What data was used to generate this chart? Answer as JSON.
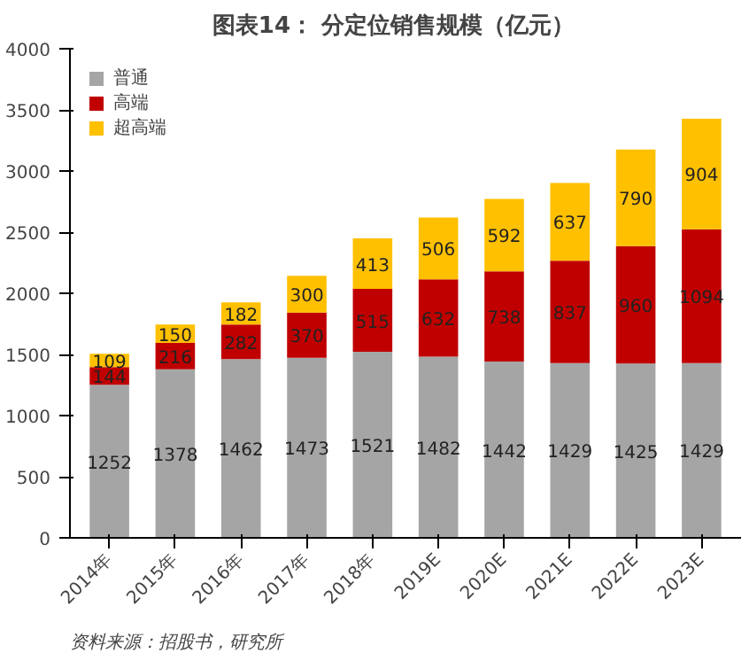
{
  "chart_data": {
    "type": "bar",
    "title": "图表14：    分定位销售规模（亿元）",
    "categories": [
      "2014年",
      "2015年",
      "2016年",
      "2017年",
      "2018年",
      "2019E",
      "2020E",
      "2021E",
      "2022E",
      "2023E"
    ],
    "series": [
      {
        "name": "普通",
        "color": "#a5a5a5",
        "values": [
          1252,
          1378,
          1462,
          1473,
          1521,
          1482,
          1442,
          1429,
          1425,
          1429
        ]
      },
      {
        "name": "高端",
        "color": "#c00000",
        "values": [
          144,
          216,
          282,
          370,
          515,
          632,
          738,
          837,
          960,
          1094
        ]
      },
      {
        "name": "超高端",
        "color": "#ffc000",
        "values": [
          109,
          150,
          182,
          300,
          413,
          506,
          592,
          637,
          790,
          904
        ]
      }
    ],
    "stacked": true,
    "data_labels": true,
    "ylim": [
      0,
      4000
    ],
    "yticks": [
      0,
      500,
      1000,
      1500,
      2000,
      2500,
      3000,
      3500,
      4000
    ],
    "grid": false,
    "legend": "top left",
    "annotations": [
      "资料来源：招股书，研究所"
    ]
  }
}
